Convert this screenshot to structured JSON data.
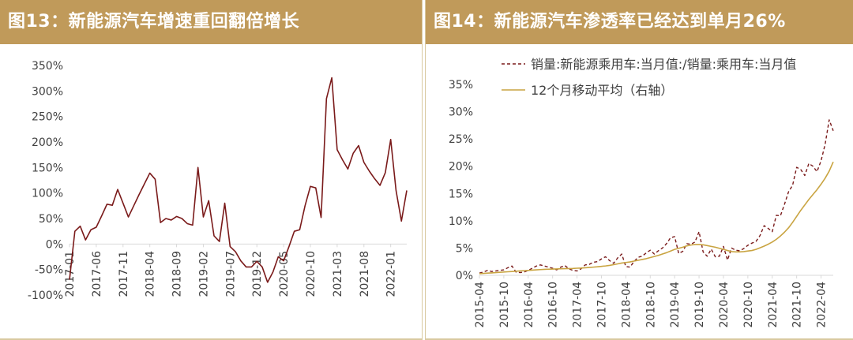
{
  "colors": {
    "header_bg": "#c09a5a",
    "header_text": "#ffffff",
    "line_dark_red": "#7a1a1a",
    "line_gold": "#c9a441",
    "axis": "#d9d9d9",
    "text": "#404040"
  },
  "left": {
    "title": "图13：新能源汽车增速重回翻倍增长"
  },
  "right": {
    "title": "图14：新能源汽车渗透率已经达到单月26%"
  },
  "chart_data": [
    {
      "type": "line",
      "title": "图13：新能源汽车增速重回翻倍增长",
      "xlabel": "",
      "ylabel": "",
      "ylim": [
        -100,
        350
      ],
      "y_ticks": [
        "-100%",
        "-50%",
        "0%",
        "50%",
        "100%",
        "150%",
        "200%",
        "250%",
        "300%",
        "350%"
      ],
      "y_tick_values": [
        -100,
        -50,
        0,
        50,
        100,
        150,
        200,
        250,
        300,
        350
      ],
      "x_start": "2017-01",
      "x_ticks": [
        "2017-01",
        "2017-06",
        "2017-11",
        "2018-04",
        "2018-09",
        "2019-02",
        "2019-07",
        "2019-12",
        "2020-05",
        "2020-10",
        "2021-03",
        "2021-08",
        "2022-01"
      ],
      "grid": false,
      "series": [
        {
          "values": [
            -70,
            25,
            35,
            8,
            28,
            33,
            55,
            78,
            76,
            107,
            80,
            53,
            75,
            97,
            118,
            139,
            127,
            42,
            50,
            47,
            54,
            50,
            40,
            37,
            150,
            53,
            85,
            16,
            5,
            80,
            -5,
            -15,
            -33,
            -45,
            -45,
            -34,
            -45,
            -75,
            -55,
            -25,
            -33,
            -5,
            25,
            28,
            75,
            113,
            110,
            52,
            285,
            326,
            185,
            165,
            147,
            178,
            193,
            160,
            143,
            128,
            115,
            140,
            205,
            105,
            45,
            105
          ]
        }
      ]
    },
    {
      "type": "line",
      "title": "图14：新能源汽车渗透率已经达到单月26%",
      "xlabel": "",
      "ylabel": "",
      "ylim": [
        0,
        35
      ],
      "y_ticks": [
        "0%",
        "5%",
        "10%",
        "15%",
        "20%",
        "25%",
        "30%",
        "35%"
      ],
      "y_tick_values": [
        0,
        5,
        10,
        15,
        20,
        25,
        30,
        35
      ],
      "x_start": "2015-04",
      "x_ticks": [
        "2015-04",
        "2015-10",
        "2016-04",
        "2016-10",
        "2017-04",
        "2017-10",
        "2018-04",
        "2018-10",
        "2019-04",
        "2019-10",
        "2020-04",
        "2020-10",
        "2021-04",
        "2021-10",
        "2022-04"
      ],
      "legend": [
        "销量:新能源乘用车:当月值:/销量:乘用车:当月值",
        "12个月移动平均（右轴）"
      ],
      "legend_position": "top-right",
      "grid": false,
      "series": [
        {
          "name": "销量:新能源乘用车:当月值:/销量:乘用车:当月值",
          "style": "dashed",
          "values": [
            0.4,
            0.6,
            0.9,
            0.7,
            0.8,
            0.9,
            1.0,
            1.4,
            1.7,
            0.6,
            0.5,
            0.6,
            0.9,
            1.3,
            1.7,
            1.9,
            1.7,
            1.5,
            1.3,
            1.0,
            1.5,
            1.8,
            1.2,
            0.9,
            0.8,
            1.2,
            1.9,
            2.0,
            2.4,
            2.5,
            3.0,
            3.4,
            2.7,
            2.2,
            3.2,
            3.9,
            1.6,
            1.5,
            2.5,
            3.3,
            3.5,
            4.1,
            4.6,
            3.9,
            4.5,
            5.0,
            5.8,
            6.9,
            7.1,
            4.0,
            4.4,
            5.8,
            5.7,
            6.1,
            8.0,
            4.3,
            3.5,
            4.8,
            3.4,
            3.5,
            5.3,
            2.8,
            5.0,
            4.6,
            4.5,
            4.9,
            5.5,
            5.9,
            6.2,
            7.3,
            9.1,
            8.6,
            8.0,
            11.0,
            10.9,
            13.0,
            15.3,
            16.5,
            19.8,
            19.4,
            18.3,
            20.5,
            20.0,
            19.0,
            21.0,
            24.0,
            28.5,
            26.5
          ]
        },
        {
          "name": "12个月移动平均（右轴）",
          "style": "solid",
          "values": [
            0.3,
            0.35,
            0.4,
            0.45,
            0.5,
            0.55,
            0.6,
            0.65,
            0.7,
            0.75,
            0.8,
            0.85,
            0.9,
            0.95,
            1.0,
            1.05,
            1.1,
            1.12,
            1.15,
            1.17,
            1.2,
            1.22,
            1.24,
            1.26,
            1.3,
            1.33,
            1.38,
            1.44,
            1.5,
            1.56,
            1.64,
            1.72,
            1.82,
            1.95,
            2.1,
            2.25,
            2.35,
            2.45,
            2.6,
            2.75,
            2.9,
            3.05,
            3.25,
            3.45,
            3.65,
            3.9,
            4.15,
            4.45,
            4.75,
            4.95,
            5.15,
            5.4,
            5.55,
            5.65,
            5.65,
            5.6,
            5.45,
            5.3,
            5.15,
            4.95,
            4.75,
            4.55,
            4.35,
            4.3,
            4.3,
            4.35,
            4.45,
            4.55,
            4.75,
            5.05,
            5.35,
            5.7,
            6.1,
            6.6,
            7.2,
            7.9,
            8.7,
            9.7,
            10.8,
            11.9,
            12.9,
            13.9,
            14.8,
            15.7,
            16.7,
            17.8,
            19.1,
            20.8
          ]
        }
      ]
    }
  ]
}
